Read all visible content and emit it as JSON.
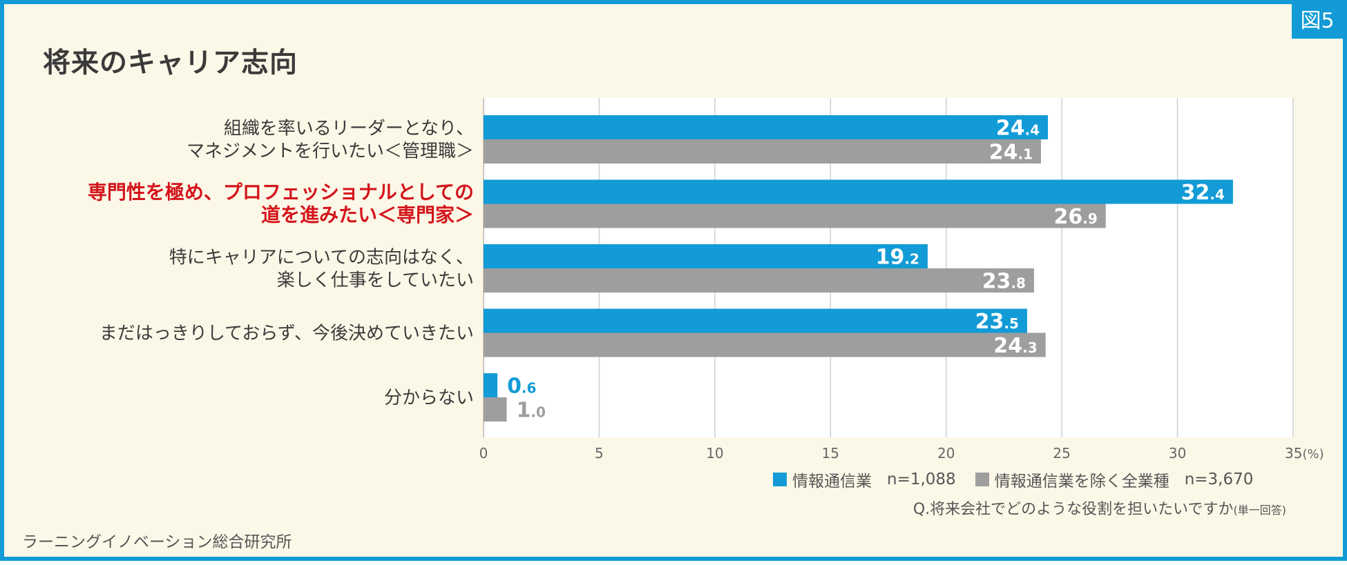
{
  "figure_label": "図5",
  "source": "ラーニングイノベーション総合研究所",
  "question": "Q.将来会社でどのような役割を担いたいですか",
  "question_note": "(単一回答)",
  "colors": {
    "blue": "#129bd6",
    "gray": "#9e9e9e",
    "highlight": "#d4141b"
  },
  "chart_data": {
    "type": "bar",
    "orientation": "horizontal",
    "title": "将来のキャリア志向",
    "categories": [
      [
        "組織を率いるリーダーとなり、",
        "マネジメントを行いたい＜管理職＞"
      ],
      [
        "専門性を極め、プロフェッショナルとしての",
        "道を進みたい＜専門家＞"
      ],
      [
        "特にキャリアについての志向はなく、",
        "楽しく仕事をしていたい"
      ],
      [
        "まだはっきりしておらず、今後決めていきたい"
      ],
      [
        "分からない"
      ]
    ],
    "highlight_category": 1,
    "series": [
      {
        "name": "情報通信業",
        "n": "n=1,088",
        "values": [
          24.4,
          32.4,
          19.2,
          23.5,
          0.6
        ]
      },
      {
        "name": "情報通信業を除く全業種",
        "n": "n=3,670",
        "values": [
          24.1,
          26.9,
          23.8,
          24.3,
          1.0
        ]
      }
    ],
    "xlim": [
      0,
      35
    ],
    "xticks": [
      0,
      5,
      10,
      15,
      20,
      25,
      30,
      35
    ],
    "x_unit": "(%)",
    "grid": true
  }
}
